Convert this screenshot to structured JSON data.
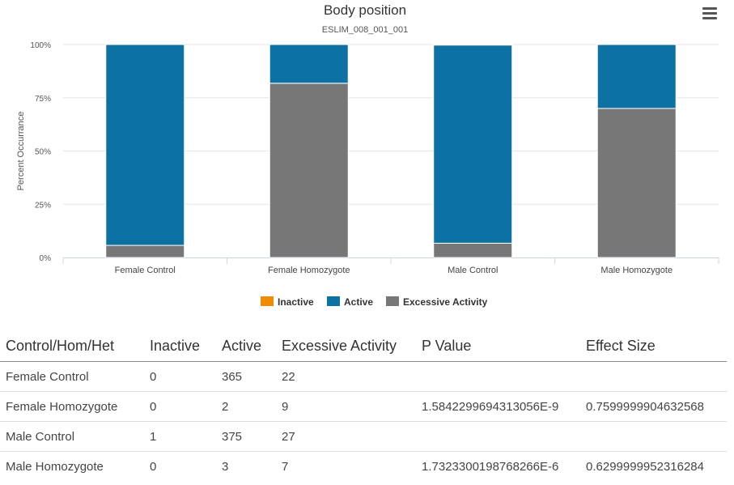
{
  "chart_data": {
    "type": "bar",
    "stacked": true,
    "normalized": true,
    "title": "Body position",
    "subtitle": "ESLIM_008_001_001",
    "ylabel": "Percent Occurrance",
    "xlabel": "",
    "ylim": [
      0,
      100
    ],
    "yticks": [
      "0%",
      "25%",
      "50%",
      "75%",
      "100%"
    ],
    "grid": true,
    "legend_position": "bottom",
    "categories": [
      "Female Control",
      "Female Homozygote",
      "Male Control",
      "Male Homozygote"
    ],
    "series": [
      {
        "name": "Inactive",
        "color": "#F08C00",
        "values": [
          0,
          0,
          1,
          0
        ]
      },
      {
        "name": "Active",
        "color": "#0B72A3",
        "values": [
          365,
          2,
          375,
          3
        ]
      },
      {
        "name": "Excessive Activity",
        "color": "#777777",
        "values": [
          22,
          9,
          27,
          7
        ]
      }
    ]
  },
  "table": {
    "headers": [
      "Control/Hom/Het",
      "Inactive",
      "Active",
      "Excessive Activity",
      "P Value",
      "Effect Size"
    ],
    "rows": [
      [
        "Female Control",
        "0",
        "365",
        "22",
        "",
        ""
      ],
      [
        "Female Homozygote",
        "0",
        "2",
        "9",
        "1.5842299694313056E-9",
        "0.7599999904632568"
      ],
      [
        "Male Control",
        "1",
        "375",
        "27",
        "",
        ""
      ],
      [
        "Male Homozygote",
        "0",
        "3",
        "7",
        "1.7323300198768266E-6",
        "0.6299999952316284"
      ]
    ]
  },
  "menu": {
    "icon": "hamburger-menu-icon"
  }
}
